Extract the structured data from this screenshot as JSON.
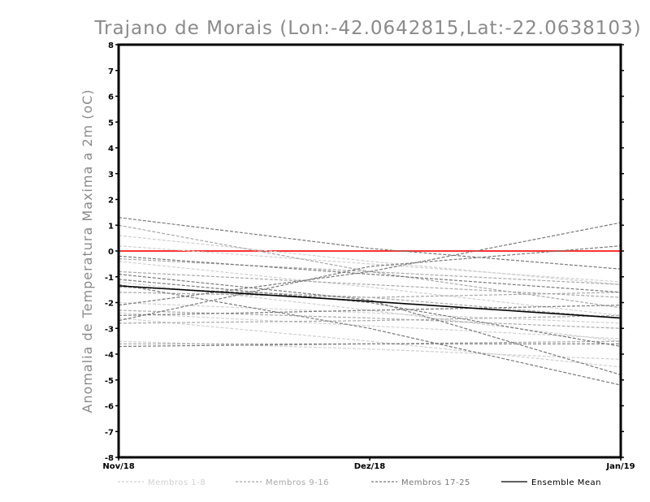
{
  "chart_data": {
    "type": "line",
    "title": "Trajano de Morais (Lon:-42.0642815,Lat:-22.0638103)",
    "ylabel": "Anomalia de Temperatura Maxima a 2m (oC)",
    "xlabel": "",
    "categories": [
      "Nov/18",
      "Dez/18",
      "Jan/19"
    ],
    "ylim": [
      -8,
      8
    ],
    "yticks": [
      "8",
      "7",
      "6",
      "5",
      "4",
      "3",
      "2",
      "1",
      "0",
      "-1",
      "-2",
      "-3",
      "-4",
      "-5",
      "-6",
      "-7",
      "-8"
    ],
    "yticks_values": [
      8,
      7,
      6,
      5,
      4,
      3,
      2,
      1,
      0,
      -1,
      -2,
      -3,
      -4,
      -5,
      -6,
      -7,
      -8
    ],
    "grid": false,
    "zero_line_color": "#ff3333",
    "legend": [
      {
        "label": "Membros 1-8",
        "color": "#d0d0d0",
        "style": "dashed"
      },
      {
        "label": "Membros 9-16",
        "color": "#a8a8a8",
        "style": "dashed"
      },
      {
        "label": "Membros 17-25",
        "color": "#787878",
        "style": "dashed"
      },
      {
        "label": "Ensemble Mean",
        "color": "#000000",
        "style": "solid"
      }
    ],
    "series": [
      {
        "group": 0,
        "values": [
          0.6,
          -0.4,
          -1.3
        ]
      },
      {
        "group": 0,
        "values": [
          0.2,
          -0.5,
          -1.2
        ]
      },
      {
        "group": 0,
        "values": [
          -0.4,
          -1.4,
          -2.5
        ]
      },
      {
        "group": 0,
        "values": [
          -1.2,
          -2.3,
          -3.5
        ]
      },
      {
        "group": 0,
        "values": [
          -2.0,
          -2.4,
          -2.8
        ]
      },
      {
        "group": 0,
        "values": [
          -2.4,
          -2.9,
          -3.4
        ]
      },
      {
        "group": 0,
        "values": [
          -3.5,
          -3.8,
          -4.2
        ]
      },
      {
        "group": 0,
        "values": [
          -2.6,
          -3.5,
          -4.5
        ]
      },
      {
        "group": 1,
        "values": [
          1.0,
          -0.8,
          -2.2
        ]
      },
      {
        "group": 1,
        "values": [
          -0.3,
          -0.8,
          -1.3
        ]
      },
      {
        "group": 1,
        "values": [
          -0.8,
          -1.3,
          -1.8
        ]
      },
      {
        "group": 1,
        "values": [
          -1.4,
          -1.8,
          -2.6
        ]
      },
      {
        "group": 1,
        "values": [
          -2.3,
          -2.6,
          -3.0
        ]
      },
      {
        "group": 1,
        "values": [
          -2.8,
          -2.7,
          -2.5
        ]
      },
      {
        "group": 1,
        "values": [
          -3.6,
          -3.6,
          -3.5
        ]
      },
      {
        "group": 1,
        "values": [
          -1.6,
          -1.8,
          -1.6
        ]
      },
      {
        "group": 2,
        "values": [
          1.3,
          0.1,
          -0.7
        ]
      },
      {
        "group": 2,
        "values": [
          -2.1,
          -0.8,
          1.1
        ]
      },
      {
        "group": 2,
        "values": [
          -2.7,
          -0.6,
          0.2
        ]
      },
      {
        "group": 2,
        "values": [
          -0.2,
          -0.9,
          -1.6
        ]
      },
      {
        "group": 2,
        "values": [
          -1.1,
          -2.0,
          -3.7
        ]
      },
      {
        "group": 2,
        "values": [
          -1.3,
          -3.0,
          -5.2
        ]
      },
      {
        "group": 2,
        "values": [
          -2.5,
          -2.3,
          -2.1
        ]
      },
      {
        "group": 2,
        "values": [
          -3.7,
          -3.6,
          -3.6
        ]
      },
      {
        "group": 2,
        "values": [
          -0.9,
          -1.9,
          -4.8
        ]
      },
      {
        "group": 3,
        "values": [
          -1.35,
          -1.95,
          -2.6
        ]
      }
    ]
  }
}
